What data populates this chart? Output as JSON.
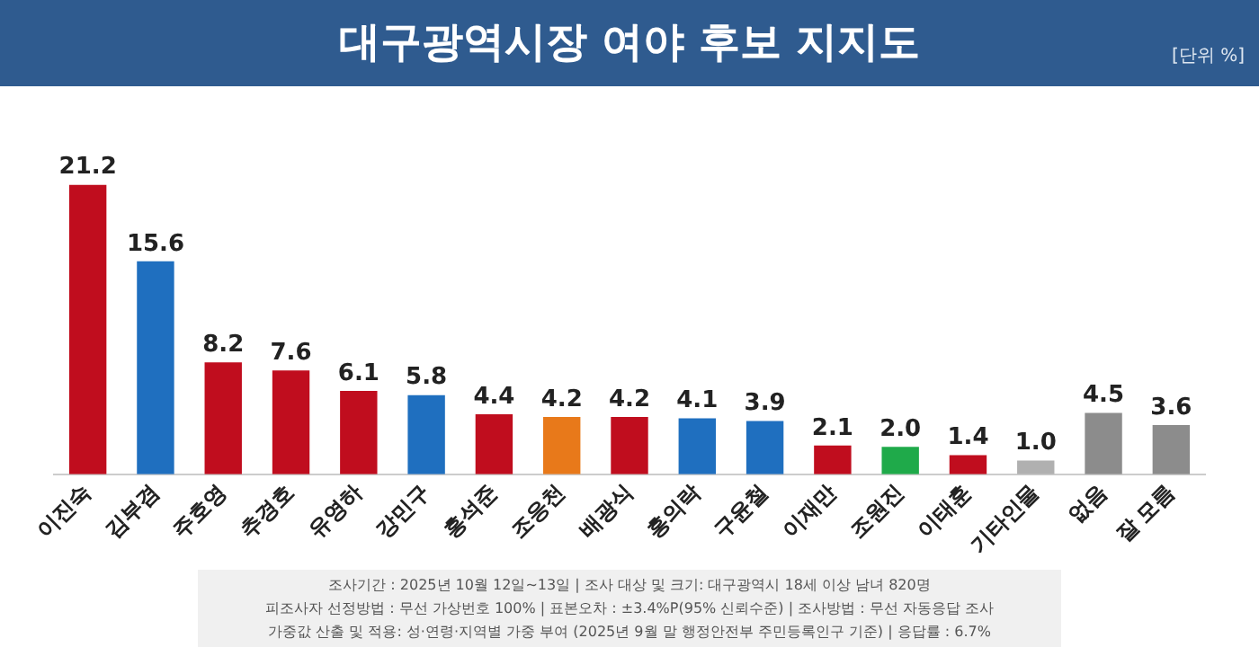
{
  "chart_data": {
    "type": "bar",
    "title": "대구광역시장 여야 후보 지지도",
    "subtitle": "[단위 %]",
    "categories": [
      "이진숙",
      "김부겸",
      "주호영",
      "추경호",
      "유영하",
      "강민구",
      "홍석준",
      "조응천",
      "배광식",
      "홍의락",
      "구윤철",
      "이재만",
      "조원진",
      "이태훈",
      "기타인물",
      "없음",
      "잘 모름"
    ],
    "values": [
      21.2,
      15.6,
      8.2,
      7.6,
      6.1,
      5.8,
      4.4,
      4.2,
      4.2,
      4.1,
      3.9,
      2.1,
      2.0,
      1.4,
      1.0,
      4.5,
      3.6
    ],
    "colors": [
      "#c00d1e",
      "#1f6fbf",
      "#c00d1e",
      "#c00d1e",
      "#c00d1e",
      "#1f6fbf",
      "#c00d1e",
      "#e8791a",
      "#c00d1e",
      "#1f6fbf",
      "#1f6fbf",
      "#c00d1e",
      "#1faa4a",
      "#c00d1e",
      "#b0b0b0",
      "#8c8c8c",
      "#8c8c8c"
    ],
    "value_labels": [
      "21.2",
      "15.6",
      "8.2",
      "7.6",
      "6.1",
      "5.8",
      "4.4",
      "4.2",
      "4.2",
      "4.1",
      "3.9",
      "2.1",
      "2.0",
      "1.4",
      "1.0",
      "4.5",
      "3.6"
    ],
    "grid": false,
    "legend": false,
    "annotations": [
      "조사기간 : 2025년 10월 12일~13일 | 조사 대상 및 크기: 대구광역시 18세 이상 남녀 820명",
      "피조사자 선정방법 : 무선 가상번호 100% | 표본오차 : ±3.4%P(95% 신뢰수준) | 조사방법 : 무선 자동응답 조사",
      "가중값 산출 및 적용: 성·연령·지역별 가중 부여 (2025년 9월 말 행정안전부 주민등록인구 기준) | 응답률 : 6.7%"
    ]
  }
}
